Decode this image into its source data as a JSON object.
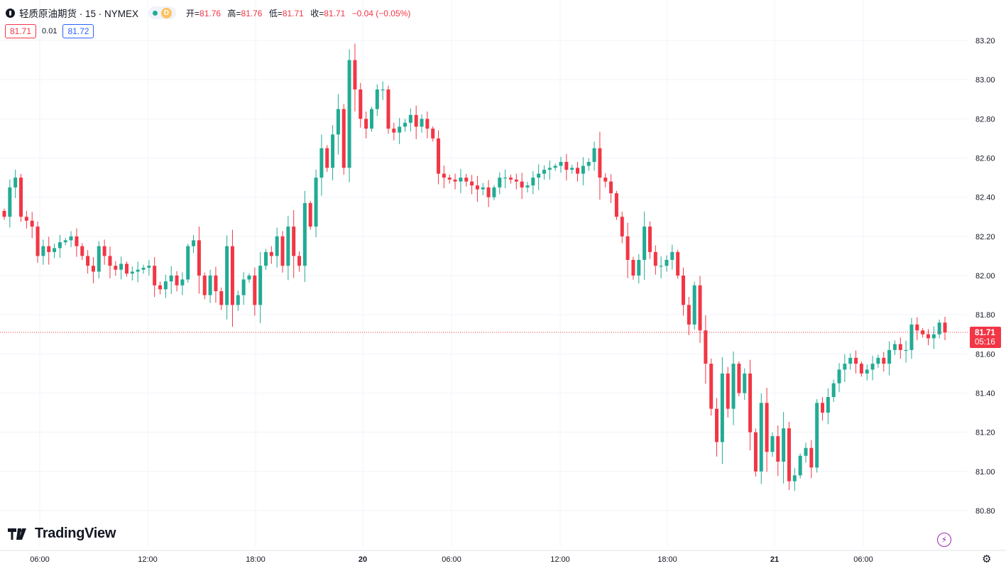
{
  "header": {
    "title": "轻质原油期货 · 15 · NYMEX",
    "session_label": "D",
    "ohlc": [
      {
        "label": "开=",
        "value": "81.76"
      },
      {
        "label": "高=",
        "value": "81.76"
      },
      {
        "label": "低=",
        "value": "81.71"
      },
      {
        "label": "收=",
        "value": "81.71"
      },
      {
        "label": "",
        "value": "−0.04 (−0.05%)"
      }
    ]
  },
  "trade": {
    "sell": "81.71",
    "spread": "0.01",
    "buy": "81.72"
  },
  "price_tag": {
    "price": "81.71",
    "countdown": "05:16"
  },
  "logo": "TradingView",
  "colors": {
    "up": "#22ab94",
    "down": "#f23645",
    "grid": "#f0f3fa",
    "accent": "#2962ff"
  },
  "chart_data": {
    "type": "candlestick",
    "title": "轻质原油期货",
    "interval": "15",
    "exchange": "NYMEX",
    "ylim": [
      80.72,
      83.26
    ],
    "yticks": [
      "83.20",
      "83.00",
      "82.80",
      "82.60",
      "82.40",
      "82.20",
      "82.00",
      "81.80",
      "81.60",
      "81.40",
      "81.20",
      "81.00",
      "80.80"
    ],
    "xticks": [
      "06:00",
      "12:00",
      "18:00",
      "20",
      "06:00",
      "12:00",
      "18:00",
      "21",
      "06:00"
    ],
    "last_price": 81.71,
    "closes": [
      82.3,
      82.45,
      82.5,
      82.3,
      82.28,
      82.25,
      82.1,
      82.15,
      82.12,
      82.14,
      82.17,
      82.18,
      82.2,
      82.15,
      82.1,
      82.05,
      82.02,
      82.15,
      82.1,
      82.05,
      82.03,
      82.06,
      82.01,
      82.02,
      82.03,
      82.04,
      82.05,
      81.95,
      81.93,
      81.97,
      82.0,
      81.95,
      81.98,
      82.15,
      82.18,
      82.0,
      81.9,
      82.0,
      81.92,
      81.85,
      82.15,
      81.85,
      81.9,
      81.98,
      82.0,
      81.85,
      82.05,
      82.12,
      82.1,
      82.2,
      82.05,
      82.25,
      82.1,
      82.05,
      82.37,
      82.25,
      82.5,
      82.65,
      82.55,
      82.72,
      82.85,
      82.55,
      83.1,
      82.95,
      82.8,
      82.75,
      82.85,
      82.95,
      82.95,
      82.75,
      82.73,
      82.76,
      82.78,
      82.82,
      82.76,
      82.8,
      82.75,
      82.7,
      82.52,
      82.5,
      82.49,
      82.48,
      82.5,
      82.48,
      82.46,
      82.44,
      82.45,
      82.4,
      82.45,
      82.5,
      82.5,
      82.49,
      82.48,
      82.45,
      82.46,
      82.5,
      82.52,
      82.54,
      82.55,
      82.56,
      82.58,
      82.54,
      82.55,
      82.52,
      82.56,
      82.58,
      82.65,
      82.5,
      82.48,
      82.42,
      82.3,
      82.2,
      82.08,
      82.0,
      82.08,
      82.25,
      82.12,
      82.05,
      82.05,
      82.08,
      82.12,
      82.0,
      81.85,
      81.75,
      81.95,
      81.72,
      81.55,
      81.32,
      81.15,
      81.5,
      81.32,
      81.55,
      81.4,
      81.5,
      81.2,
      81.0,
      81.35,
      81.1,
      81.18,
      81.05,
      81.22,
      80.95,
      80.98,
      81.08,
      81.12,
      81.02,
      81.35,
      81.3,
      81.38,
      81.45,
      81.52,
      81.55,
      81.58,
      81.55,
      81.5,
      81.52,
      81.55,
      81.58,
      81.55,
      81.62,
      81.65,
      81.62,
      81.62,
      81.75,
      81.72,
      81.7,
      81.68,
      81.7,
      81.76,
      81.71
    ]
  }
}
